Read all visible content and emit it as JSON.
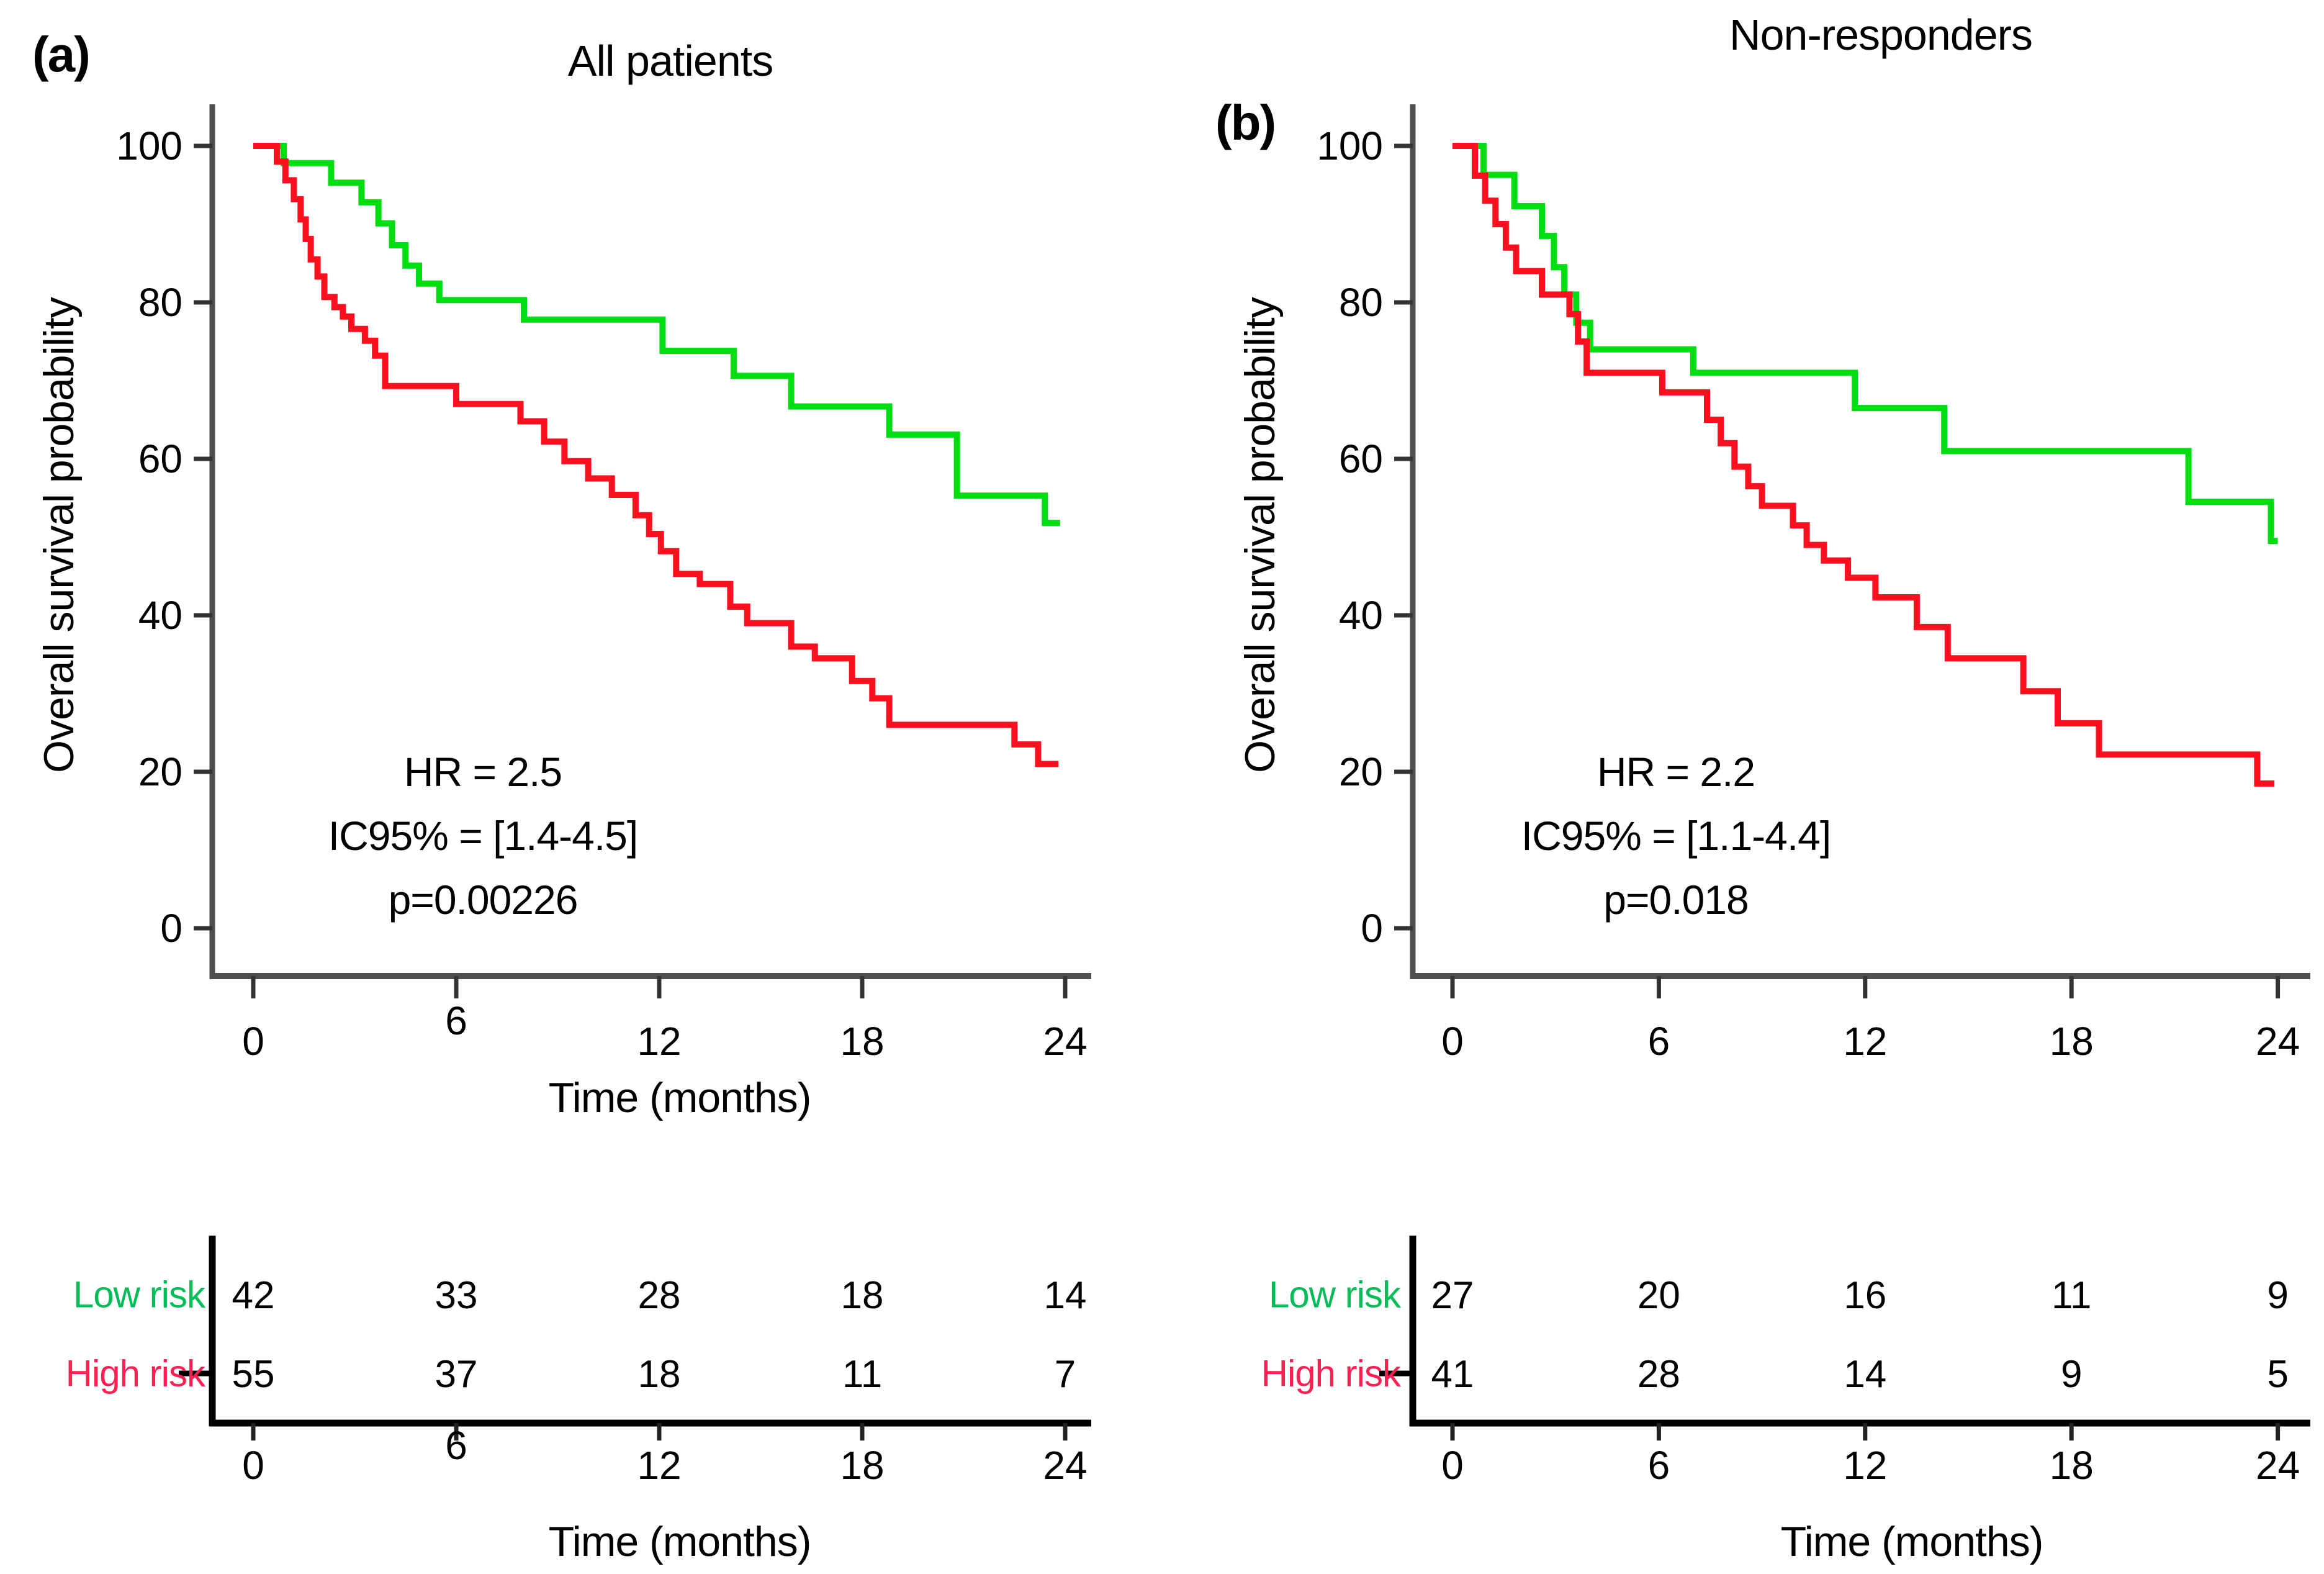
{
  "colors": {
    "low_risk_curve": "#00dd11",
    "high_risk_curve": "#fb1020",
    "low_risk_label": "#00bd58",
    "high_risk_label": "#ff2053",
    "axis": "#4f4f4f",
    "table_line": "#000000",
    "text": "#000000"
  },
  "panels": [
    {
      "tag": "(a)",
      "title": "All patients",
      "ylabel": "Overall survival probability",
      "xlabel": "Time (months)",
      "annotation": {
        "hr": "HR = 2.5",
        "ci": "IC95% = [1.4-4.5]",
        "p": "p=0.00226"
      }
    },
    {
      "tag": "(b)",
      "title": "Non-responders",
      "ylabel": "Overall survival probability",
      "annotation": {
        "hr": "HR = 2.2",
        "ci": "IC95% = [1.1-4.4]",
        "p": "p=0.018"
      }
    }
  ],
  "risk_tables": [
    {
      "xlabel": "Time (months)",
      "xticks": [
        0,
        6,
        12,
        18,
        24
      ],
      "rows": [
        {
          "label": "Low risk",
          "color_key": "low_risk_label",
          "values": [
            "42",
            "33",
            "28",
            "18",
            "14"
          ]
        },
        {
          "label": "High risk",
          "color_key": "high_risk_label",
          "values": [
            "55",
            "37",
            "18",
            "11",
            "7"
          ]
        }
      ]
    },
    {
      "xlabel": "Time (months)",
      "xticks": [
        0,
        6,
        12,
        18,
        24
      ],
      "rows": [
        {
          "label": "Low risk",
          "color_key": "low_risk_label",
          "values": [
            "27",
            "20",
            "16",
            "11",
            "9"
          ]
        },
        {
          "label": "High risk",
          "color_key": "high_risk_label",
          "values": [
            "41",
            "28",
            "14",
            "9",
            "5"
          ]
        }
      ]
    }
  ],
  "chart_data": [
    {
      "type": "line",
      "subtype": "kaplan-meier-step",
      "title": "All patients",
      "xlabel": "Time (months)",
      "ylabel": "Overall survival probability",
      "xlim": [
        0,
        24
      ],
      "ylim": [
        0,
        100
      ],
      "xticks": [
        0,
        6,
        12,
        18,
        24
      ],
      "yticks": [
        100,
        80,
        60,
        40,
        20,
        0
      ],
      "grid": false,
      "legend_position": "none",
      "annotations": [
        "HR = 2.5",
        "IC95% = [1.4-4.5]",
        "p=0.00226"
      ],
      "series": [
        {
          "name": "Low risk",
          "color_key": "low_risk_curve",
          "end": 23.85,
          "points": [
            [
              0,
              100
            ],
            [
              0.9,
              97.8
            ],
            [
              2.3,
              95.3
            ],
            [
              3.2,
              92.8
            ],
            [
              3.7,
              90.1
            ],
            [
              4.1,
              87.3
            ],
            [
              4.5,
              84.7
            ],
            [
              4.9,
              82.4
            ],
            [
              5.5,
              80.3
            ],
            [
              8.0,
              77.8
            ],
            [
              12.1,
              73.8
            ],
            [
              14.2,
              70.6
            ],
            [
              15.9,
              66.7
            ],
            [
              18.8,
              63.1
            ],
            [
              20.8,
              55.3
            ],
            [
              23.4,
              51.8
            ]
          ]
        },
        {
          "name": "High risk",
          "color_key": "high_risk_curve",
          "end": 23.8,
          "points": [
            [
              0,
              100
            ],
            [
              0.7,
              98
            ],
            [
              0.95,
              95.6
            ],
            [
              1.2,
              93.2
            ],
            [
              1.4,
              90.6
            ],
            [
              1.55,
              88.1
            ],
            [
              1.7,
              85.5
            ],
            [
              1.9,
              83.3
            ],
            [
              2.1,
              80.7
            ],
            [
              2.4,
              79.4
            ],
            [
              2.65,
              78.2
            ],
            [
              2.9,
              76.6
            ],
            [
              3.3,
              75.1
            ],
            [
              3.6,
              73.2
            ],
            [
              3.9,
              69.3
            ],
            [
              6.0,
              67.0
            ],
            [
              7.9,
              64.8
            ],
            [
              8.6,
              62.2
            ],
            [
              9.2,
              59.7
            ],
            [
              9.9,
              57.5
            ],
            [
              10.6,
              55.4
            ],
            [
              11.3,
              52.8
            ],
            [
              11.7,
              50.4
            ],
            [
              12.05,
              48.2
            ],
            [
              12.5,
              45.3
            ],
            [
              13.2,
              44.0
            ],
            [
              14.1,
              41.1
            ],
            [
              14.6,
              39.0
            ],
            [
              15.9,
              36.0
            ],
            [
              16.6,
              34.5
            ],
            [
              17.7,
              31.6
            ],
            [
              18.3,
              29.4
            ],
            [
              18.8,
              26.0
            ],
            [
              22.5,
              23.5
            ],
            [
              23.2,
              21.0
            ]
          ]
        }
      ]
    },
    {
      "type": "line",
      "subtype": "kaplan-meier-step",
      "title": "Non-responders",
      "xlabel": "Time (months)",
      "ylabel": "Overall survival probability",
      "xlim": [
        0,
        24
      ],
      "ylim": [
        0,
        100
      ],
      "xticks": [
        0,
        6,
        12,
        18,
        24
      ],
      "yticks": [
        100,
        80,
        60,
        40,
        20,
        0
      ],
      "grid": false,
      "legend_position": "none",
      "annotations": [
        "HR = 2.2",
        "IC95% = [1.1-4.4]",
        "p=0.018"
      ],
      "series": [
        {
          "name": "Low risk",
          "color_key": "low_risk_curve",
          "end": 24,
          "points": [
            [
              0,
              100
            ],
            [
              0.9,
              96.3
            ],
            [
              1.8,
              92.3
            ],
            [
              2.6,
              88.5
            ],
            [
              2.95,
              84.5
            ],
            [
              3.25,
              81.0
            ],
            [
              3.6,
              77.4
            ],
            [
              4.0,
              74.0
            ],
            [
              7.0,
              71.0
            ],
            [
              11.7,
              66.5
            ],
            [
              14.3,
              61.0
            ],
            [
              21.4,
              54.5
            ],
            [
              23.8,
              49.5
            ]
          ]
        },
        {
          "name": "High risk",
          "color_key": "high_risk_curve",
          "end": 23.9,
          "points": [
            [
              0,
              100
            ],
            [
              0.65,
              96.2
            ],
            [
              0.95,
              93.0
            ],
            [
              1.25,
              90.0
            ],
            [
              1.55,
              87.0
            ],
            [
              1.85,
              84.0
            ],
            [
              2.6,
              81.0
            ],
            [
              3.4,
              78.5
            ],
            [
              3.65,
              75.0
            ],
            [
              3.9,
              71.0
            ],
            [
              6.1,
              68.5
            ],
            [
              7.4,
              65.0
            ],
            [
              7.8,
              62.0
            ],
            [
              8.2,
              59.0
            ],
            [
              8.6,
              56.5
            ],
            [
              9.0,
              54.0
            ],
            [
              9.9,
              51.5
            ],
            [
              10.3,
              49.0
            ],
            [
              10.8,
              47.0
            ],
            [
              11.5,
              44.8
            ],
            [
              12.3,
              42.3
            ],
            [
              13.5,
              38.5
            ],
            [
              14.4,
              34.5
            ],
            [
              16.6,
              30.3
            ],
            [
              17.6,
              26.2
            ],
            [
              18.8,
              22.2
            ],
            [
              23.4,
              18.5
            ]
          ]
        }
      ]
    }
  ]
}
